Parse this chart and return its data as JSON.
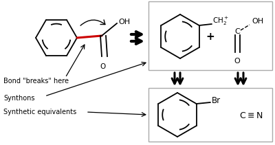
{
  "bg": "#ffffff",
  "fig_w": 4.0,
  "fig_h": 2.11,
  "dpi": 100,
  "bond_breaks_label": "Bond \"breaks\" here",
  "synthons_label": "Synthons",
  "synth_eq_label": "Synthetic equivalents",
  "box_edge_color": "#aaaaaa",
  "box_face_color": "#ffffff",
  "red_bond_color": "#cc0000"
}
